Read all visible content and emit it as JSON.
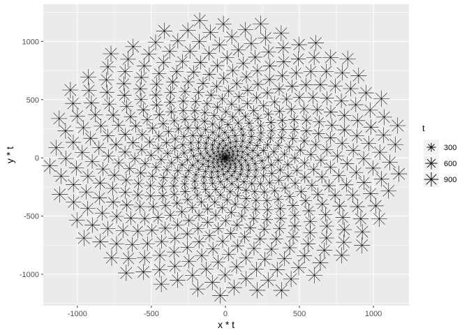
{
  "chart_data": {
    "type": "scatter",
    "title": "",
    "xlabel": "x * t",
    "ylabel": "y * t",
    "xlim": [
      -1230,
      1240
    ],
    "ylim": [
      -1270,
      1320
    ],
    "x_ticks": [
      -1000,
      -500,
      0,
      500,
      1000
    ],
    "x_tick_labels": [
      "-1000",
      "-500",
      "0",
      "500",
      "1000"
    ],
    "y_ticks": [
      -1000,
      -500,
      0,
      500,
      1000
    ],
    "y_tick_labels": [
      "-1000",
      "-500",
      "0",
      "500",
      "1000"
    ],
    "grid": true,
    "marker": "asterisk",
    "legend": {
      "title": "t",
      "placement": "right",
      "entries": [
        {
          "label": "300",
          "value": 300
        },
        {
          "label": "600",
          "value": 600
        },
        {
          "label": "900",
          "value": 900
        }
      ]
    },
    "size_variable": "t",
    "size_range": [
      1,
      1200
    ],
    "points": {
      "count": 600,
      "t_range": [
        2,
        1200
      ],
      "angle_step_rad": 2.4,
      "x": "t * cos(2.4 * i)",
      "y": "t * sin(2.4 * i)"
    }
  },
  "colors": {
    "panel": "#ebebeb",
    "grid_major": "#ffffff",
    "marker": "#000000",
    "tick": "#333333"
  }
}
